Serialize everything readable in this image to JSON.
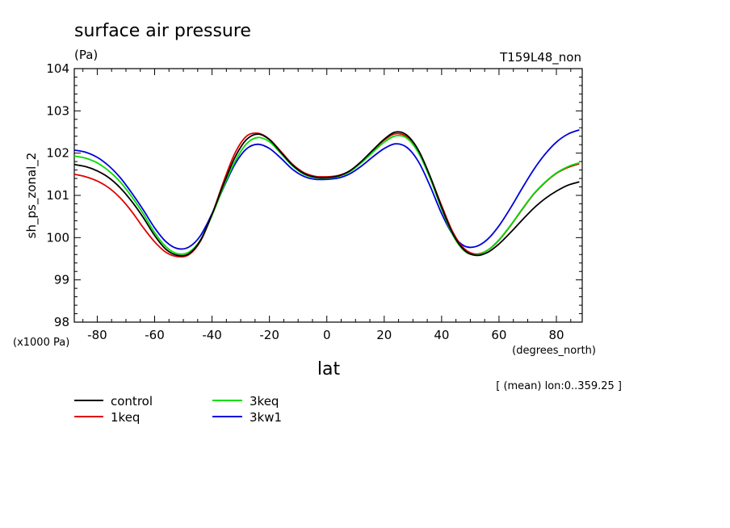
{
  "chart_data": {
    "type": "line",
    "title": "surface air pressure",
    "units": "(Pa)",
    "run_label": "T159L48_non",
    "ylabel": "sh_ps_zonal_2",
    "xlabel": "lat",
    "x_units": "(degrees_north)",
    "y_scale_note": "(x1000 Pa)",
    "mean_note": "[ (mean) lon:0..359.25 ]",
    "xlim": [
      -88,
      89
    ],
    "ylim": [
      98,
      104
    ],
    "x_ticks": [
      -80,
      -60,
      -40,
      -20,
      0,
      20,
      40,
      60,
      80
    ],
    "x_tick_labels": [
      "-80",
      "-60",
      "-40",
      "-20",
      "0",
      "20",
      "40",
      "60",
      "80"
    ],
    "y_ticks": [
      98,
      99,
      100,
      101,
      102,
      103,
      104
    ],
    "y_tick_labels": [
      "98",
      "99",
      "100",
      "101",
      "102",
      "103",
      "104"
    ],
    "grid": false,
    "legend_position": "bottom-left",
    "x": [
      -88,
      -84,
      -80,
      -76,
      -72,
      -68,
      -64,
      -60,
      -56,
      -52,
      -48,
      -44,
      -40,
      -36,
      -32,
      -28,
      -24,
      -20,
      -16,
      -12,
      -8,
      -4,
      0,
      4,
      8,
      12,
      16,
      20,
      24,
      28,
      32,
      36,
      40,
      44,
      48,
      52,
      56,
      60,
      64,
      68,
      72,
      76,
      80,
      84,
      88
    ],
    "series": [
      {
        "name": "control",
        "color": "#000000",
        "values": [
          101.73,
          101.68,
          101.58,
          101.42,
          101.18,
          100.86,
          100.48,
          100.05,
          99.72,
          99.58,
          99.62,
          99.94,
          100.55,
          101.26,
          101.9,
          102.32,
          102.45,
          102.32,
          102.02,
          101.72,
          101.52,
          101.43,
          101.42,
          101.46,
          101.58,
          101.8,
          102.07,
          102.33,
          102.5,
          102.42,
          102.06,
          101.45,
          100.72,
          100.08,
          99.7,
          99.58,
          99.65,
          99.85,
          100.12,
          100.41,
          100.69,
          100.92,
          101.1,
          101.24,
          101.32
        ]
      },
      {
        "name": "1keq",
        "color": "#e00000",
        "values": [
          101.5,
          101.44,
          101.34,
          101.18,
          100.94,
          100.62,
          100.24,
          99.9,
          99.65,
          99.55,
          99.6,
          99.92,
          100.55,
          101.32,
          102.0,
          102.4,
          102.47,
          102.33,
          102.04,
          101.74,
          101.54,
          101.45,
          101.44,
          101.47,
          101.58,
          101.8,
          102.06,
          102.31,
          102.46,
          102.38,
          102.02,
          101.44,
          100.76,
          100.12,
          99.73,
          99.61,
          99.7,
          99.94,
          100.28,
          100.66,
          101.02,
          101.3,
          101.52,
          101.66,
          101.75
        ]
      },
      {
        "name": "3keq",
        "color": "#00dd00",
        "values": [
          101.93,
          101.88,
          101.77,
          101.58,
          101.32,
          100.97,
          100.57,
          100.12,
          99.78,
          99.62,
          99.66,
          99.95,
          100.53,
          101.2,
          101.8,
          102.22,
          102.37,
          102.27,
          101.99,
          101.7,
          101.5,
          101.42,
          101.41,
          101.45,
          101.56,
          101.77,
          102.02,
          102.26,
          102.41,
          102.35,
          102.0,
          101.4,
          100.68,
          100.05,
          99.68,
          99.59,
          99.7,
          99.95,
          100.29,
          100.67,
          101.03,
          101.31,
          101.53,
          101.68,
          101.77
        ]
      },
      {
        "name": "3kw1",
        "color": "#0000dd",
        "values": [
          102.07,
          102.02,
          101.9,
          101.7,
          101.42,
          101.06,
          100.66,
          100.23,
          99.9,
          99.74,
          99.78,
          100.05,
          100.57,
          101.18,
          101.74,
          102.1,
          102.21,
          102.11,
          101.88,
          101.62,
          101.45,
          101.38,
          101.38,
          101.41,
          101.51,
          101.69,
          101.91,
          102.11,
          102.22,
          102.13,
          101.79,
          101.22,
          100.57,
          100.06,
          99.8,
          99.79,
          99.96,
          100.28,
          100.7,
          101.16,
          101.6,
          101.97,
          102.26,
          102.45,
          102.55
        ]
      }
    ]
  }
}
